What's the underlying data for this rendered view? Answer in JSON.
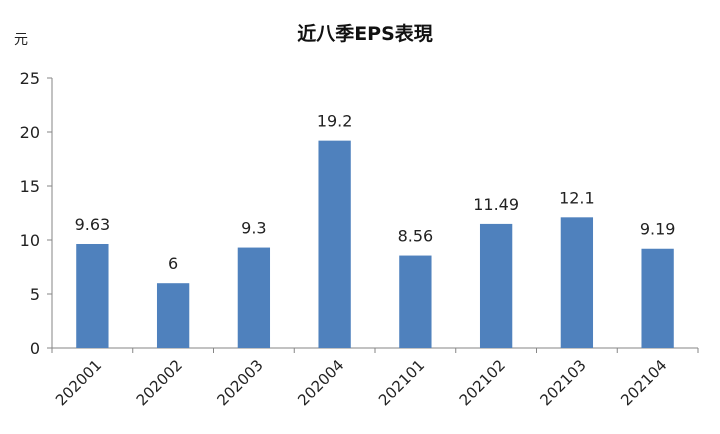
{
  "chart_data": {
    "type": "bar",
    "title": "近八季EPS表現",
    "unit": "元",
    "categories": [
      "202001",
      "202002",
      "202003",
      "202004",
      "202101",
      "202102",
      "202103",
      "202104"
    ],
    "values": [
      9.63,
      6,
      9.3,
      19.2,
      8.56,
      11.49,
      12.1,
      9.19
    ],
    "data_labels": [
      "9.63",
      "6",
      "9.3",
      "19.2",
      "8.56",
      "11.49",
      "12.1",
      "9.19"
    ],
    "ylim": [
      0,
      25
    ],
    "yticks": [
      0,
      5,
      10,
      15,
      20,
      25
    ],
    "xlabel": "",
    "ylabel": "",
    "grid": false,
    "legend": "none",
    "bar_color": "#4f81bd"
  }
}
